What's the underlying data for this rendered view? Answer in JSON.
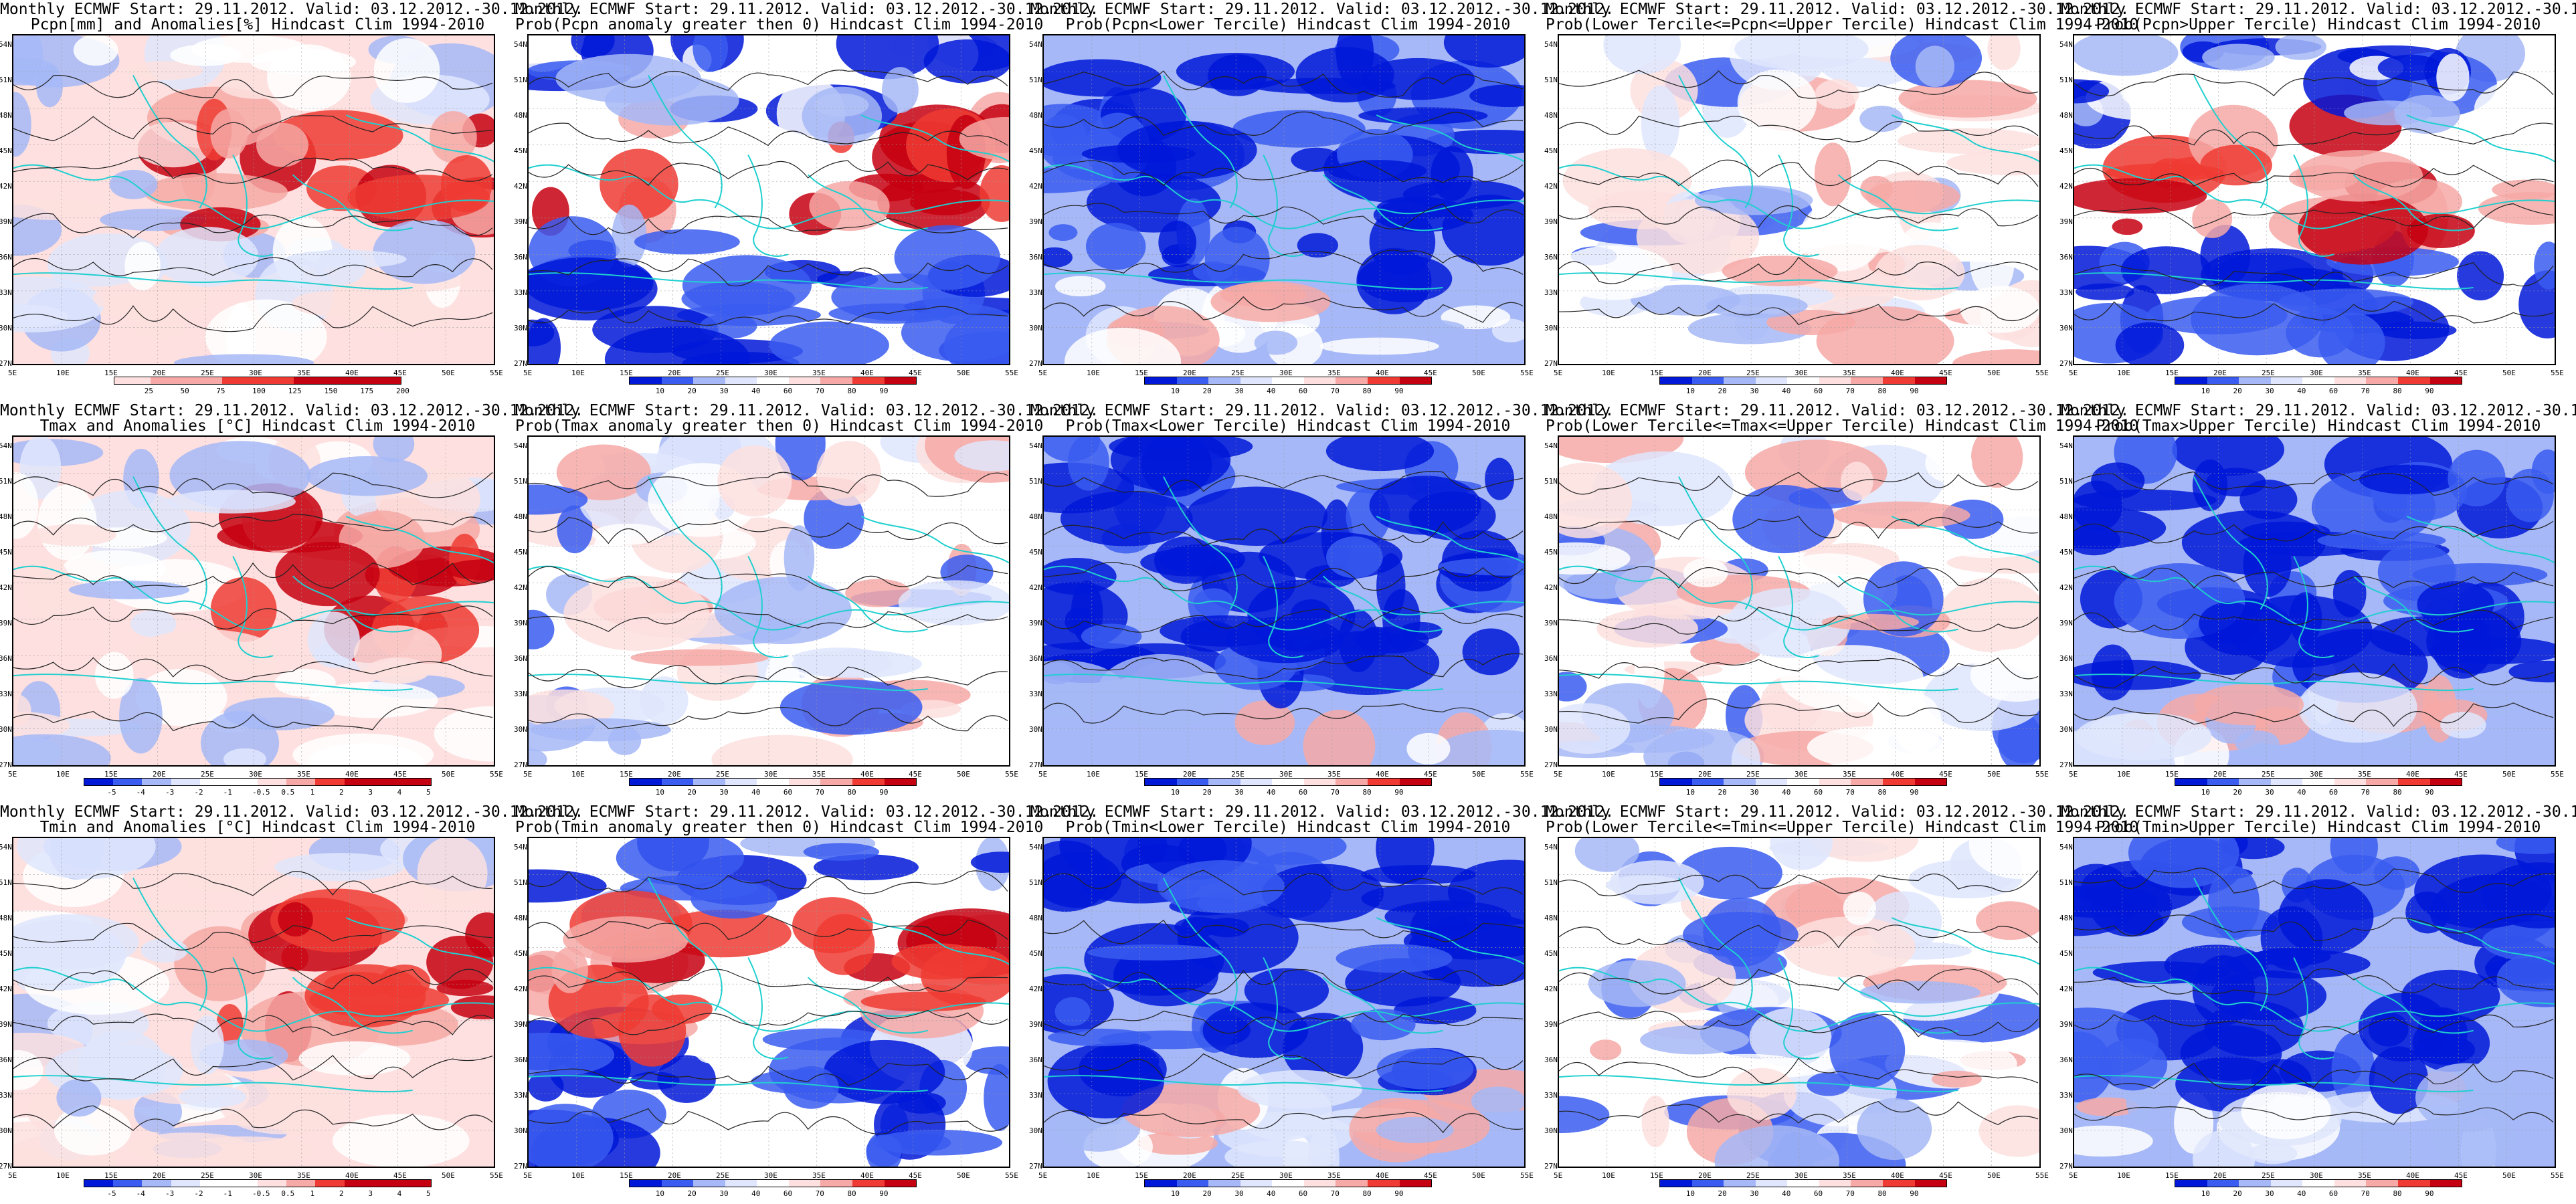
{
  "model_line": "Monthly ECMWF Start: 29.11.2012. Valid: 03.12.2012.-30.12.2012.",
  "lat_labels": [
    "54N",
    "51N",
    "48N",
    "45N",
    "42N",
    "39N",
    "36N",
    "33N",
    "30N",
    "27N"
  ],
  "lon_labels": [
    "5E",
    "10E",
    "15E",
    "20E",
    "25E",
    "30E",
    "35E",
    "40E",
    "45E",
    "50E",
    "55E"
  ],
  "colors": {
    "deep_blue": "#0018d8",
    "blue": "#3a5cf0",
    "light_blue": "#a6b8f7",
    "pale_blue": "#dfe6fd",
    "white": "#ffffff",
    "pale_red": "#fde0df",
    "light_red": "#f6a9a6",
    "red": "#ef3b33",
    "deep_red": "#c50010",
    "coast": "#1fcfcf",
    "contour": "#222222"
  },
  "colorbars": {
    "pcpn": [
      "25",
      "50",
      "75",
      "100",
      "125",
      "150",
      "175",
      "200"
    ],
    "temp": [
      "-5",
      "-4",
      "-3",
      "-2",
      "-1",
      "-0.5",
      "0.5",
      "1",
      "2",
      "3",
      "4",
      "5"
    ],
    "prob": [
      "10",
      "20",
      "30",
      "40",
      "60",
      "70",
      "80",
      "90"
    ]
  },
  "panels": [
    {
      "title": "Pcpn[mm] and Anomalies[%] Hindcast Clim 1994-2010",
      "scheme": "anom_red",
      "cbar": "pcpn"
    },
    {
      "title": "Prob(Pcpn anomaly greater then 0) Hindcast Clim 1994-2010",
      "scheme": "prob_red",
      "cbar": "prob"
    },
    {
      "title": "Prob(Pcpn<Lower Tercile) Hindcast Clim 1994-2010",
      "scheme": "prob_blue",
      "cbar": "prob"
    },
    {
      "title": "Prob(Lower Tercile<=Pcpn<=Upper Tercile) Hindcast Clim 1994-2010",
      "scheme": "prob_mixed",
      "cbar": "prob"
    },
    {
      "title": "Prob(Pcpn>Upper Tercile) Hindcast Clim 1994-2010",
      "scheme": "prob_red",
      "cbar": "prob"
    },
    {
      "title": "Tmax and Anomalies [°C] Hindcast Clim 1994-2010",
      "scheme": "anom_red",
      "cbar": "temp"
    },
    {
      "title": "Prob(Tmax anomaly greater then 0) Hindcast Clim 1994-2010",
      "scheme": "prob_mixed",
      "cbar": "prob"
    },
    {
      "title": "Prob(Tmax<Lower Tercile) Hindcast Clim 1994-2010",
      "scheme": "prob_blue",
      "cbar": "prob"
    },
    {
      "title": "Prob(Lower Tercile<=Tmax<=Upper Tercile) Hindcast Clim 1994-2010",
      "scheme": "prob_mixed",
      "cbar": "prob"
    },
    {
      "title": "Prob(Tmax>Upper Tercile) Hindcast Clim 1994-2010",
      "scheme": "prob_blue",
      "cbar": "prob"
    },
    {
      "title": "Tmin and Anomalies [°C] Hindcast Clim 1994-2010",
      "scheme": "anom_red",
      "cbar": "temp"
    },
    {
      "title": "Prob(Tmin anomaly greater then 0) Hindcast Clim 1994-2010",
      "scheme": "prob_red",
      "cbar": "prob"
    },
    {
      "title": "Prob(Tmin<Lower Tercile) Hindcast Clim 1994-2010",
      "scheme": "prob_blue",
      "cbar": "prob"
    },
    {
      "title": "Prob(Lower Tercile<=Tmin<=Upper Tercile) Hindcast Clim 1994-2010",
      "scheme": "prob_mixed",
      "cbar": "prob"
    },
    {
      "title": "Prob(Tmin>Upper Tercile) Hindcast Clim 1994-2010",
      "scheme": "prob_blue",
      "cbar": "prob"
    }
  ]
}
